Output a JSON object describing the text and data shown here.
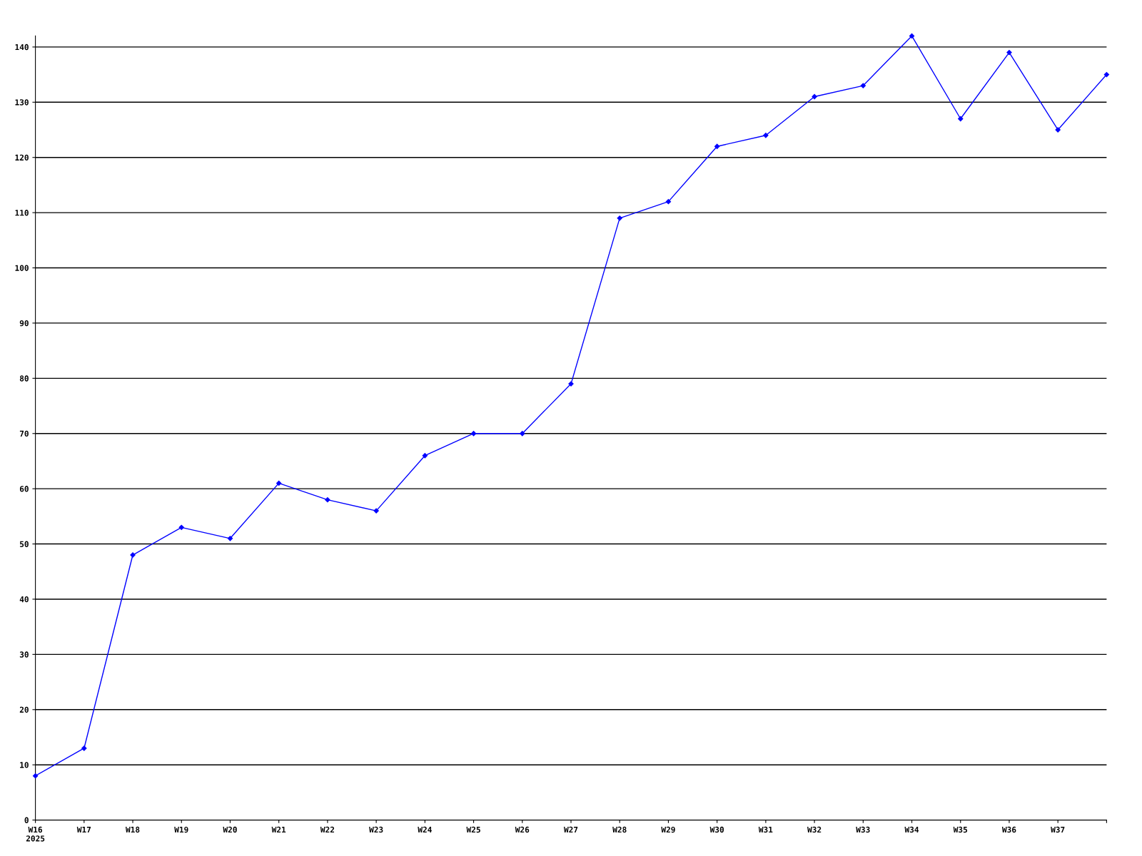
{
  "chart_data": {
    "type": "line",
    "categories": [
      "W16\n2025",
      "W17",
      "W18",
      "W19",
      "W20",
      "W21",
      "W22",
      "W23",
      "W24",
      "W25",
      "W26",
      "W27",
      "W28",
      "W29",
      "W30",
      "W31",
      "W32",
      "W33",
      "W34",
      "W35",
      "W36",
      "W37",
      null
    ],
    "series": [
      {
        "color": "#0000ff",
        "values": [
          8,
          13,
          48,
          53,
          51,
          61,
          58,
          56,
          66,
          70,
          70,
          79,
          109,
          112,
          122,
          124,
          131,
          133,
          142,
          127,
          139,
          125,
          135
        ]
      }
    ],
    "ylim": [
      0,
      142
    ],
    "yticks": [
      0,
      10,
      20,
      30,
      40,
      50,
      60,
      70,
      80,
      90,
      100,
      110,
      120,
      130,
      140
    ],
    "grid": "y",
    "marker": "diamond",
    "line_style": "solid"
  }
}
